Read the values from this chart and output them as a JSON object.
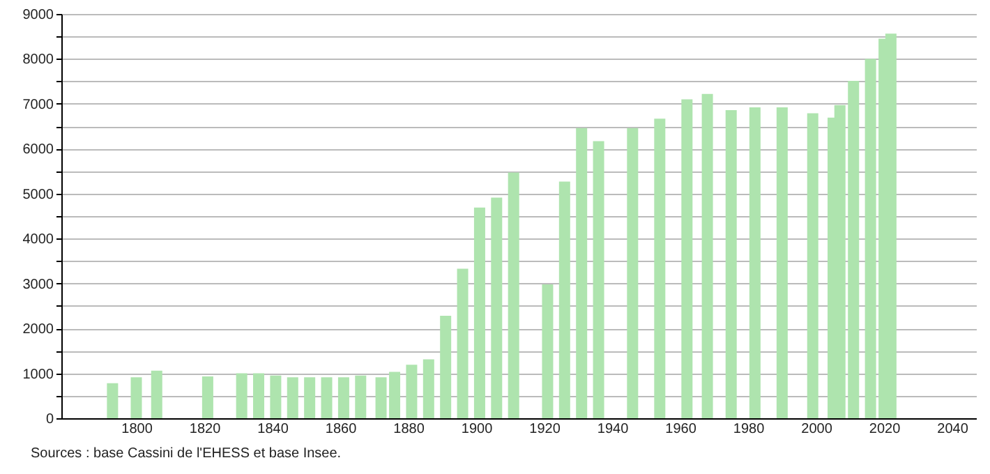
{
  "chart_data": {
    "type": "bar",
    "x": [
      1793,
      1800,
      1806,
      1821,
      1831,
      1836,
      1841,
      1846,
      1851,
      1856,
      1861,
      1866,
      1872,
      1876,
      1881,
      1886,
      1891,
      1896,
      1901,
      1906,
      1911,
      1921,
      1926,
      1931,
      1936,
      1946,
      1954,
      1962,
      1968,
      1975,
      1982,
      1990,
      1999,
      2005,
      2007,
      2011,
      2016,
      2020,
      2022
    ],
    "values": [
      780,
      910,
      1060,
      930,
      1000,
      1000,
      950,
      910,
      910,
      910,
      910,
      950,
      910,
      1030,
      1190,
      1310,
      2280,
      3330,
      4690,
      4910,
      5470,
      2980,
      5270,
      6460,
      6170,
      6460,
      6670,
      7100,
      7220,
      6860,
      6920,
      6920,
      6790,
      6690,
      6970,
      7510,
      8000,
      8450,
      8560
    ],
    "color": "#aee4ae",
    "xlim": [
      1780,
      2045
    ],
    "xticks": [
      1800,
      1820,
      1840,
      1860,
      1880,
      1900,
      1920,
      1940,
      1960,
      1980,
      2000,
      2020,
      2040
    ],
    "ylim": [
      0,
      9000
    ],
    "yticks": [
      0,
      {
        "value": 500,
        "label": null
      },
      1000,
      {
        "value": 1500,
        "label": null
      },
      2000,
      {
        "value": 2500,
        "label": null
      },
      3000,
      {
        "value": 3500,
        "label": null
      },
      4000,
      {
        "value": 4500,
        "label": null
      },
      5000,
      {
        "value": 5500,
        "label": null
      },
      6000,
      {
        "value": 6500,
        "label": null
      },
      7000,
      {
        "value": 7500,
        "label": null
      },
      8000,
      {
        "value": 8500,
        "label": null
      },
      9000
    ],
    "grid": "y",
    "annotations": [
      "Sources : base Cassini de l'EHESS et base Insee."
    ]
  }
}
